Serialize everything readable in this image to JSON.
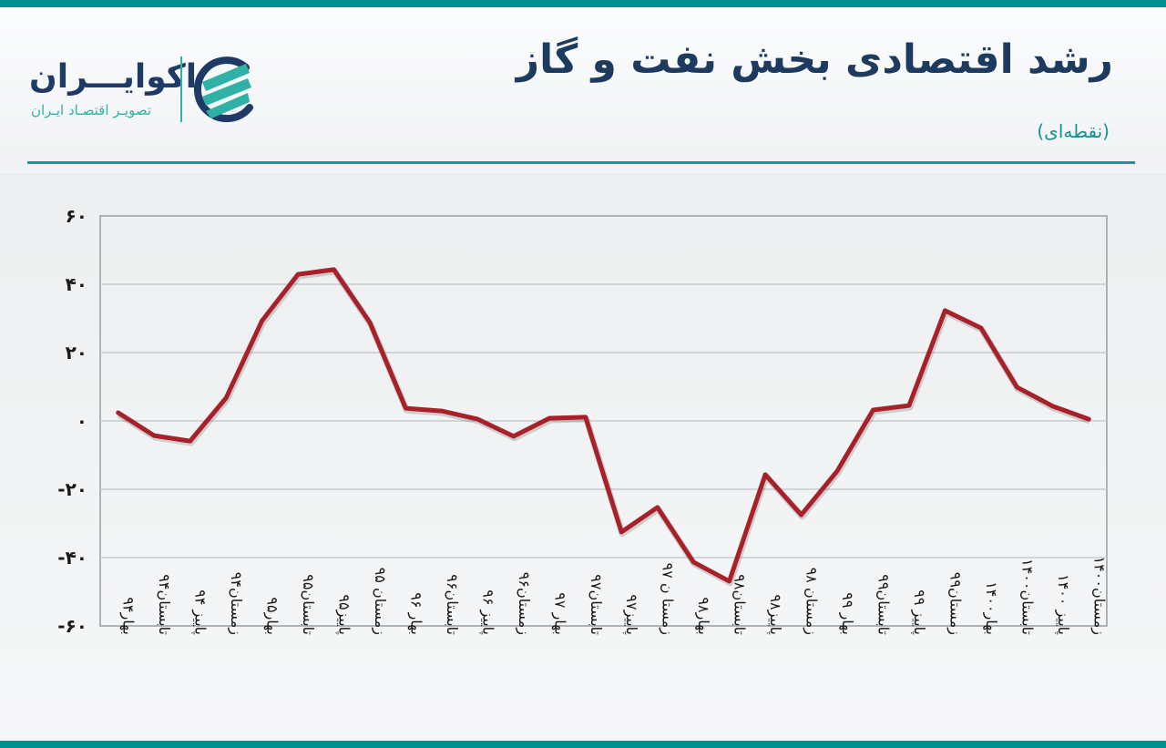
{
  "header": {
    "title": "رشد اقتصادی بخش نفت و گاز",
    "subtitle": "(نقطه‌ای)"
  },
  "logo": {
    "name": "اکوایـــران",
    "tagline": "تصویـر اقتصـاد ایـران",
    "icon": "ecoiran-logo-icon"
  },
  "colors": {
    "accent": "#00918e",
    "title": "#1d3b5e",
    "line": "#a8202a",
    "grid": "#c8cbce"
  },
  "chart_data": {
    "type": "line",
    "title": "رشد اقتصادی بخش نفت و گاز",
    "subtitle": "(نقطه‌ای)",
    "xlabel": "",
    "ylabel": "",
    "ylim": [
      -60,
      60
    ],
    "yticks": [
      60,
      40,
      20,
      0,
      -20,
      -40,
      -60
    ],
    "ytick_labels": [
      "۶۰",
      "۴۰",
      "۲۰",
      "۰",
      "-۲۰",
      "-۴۰",
      "-۶۰"
    ],
    "grid": true,
    "legend": null,
    "categories": [
      "بهار۹۴",
      "تابستان۹۴",
      "پاییز ۹۴",
      "زمستان۹۴",
      "بهار۹۵",
      "تابستان۹۵",
      "پاییز۹۵",
      "زمستان ۹۵",
      "بهار ۹۶",
      "تابستان۹۶",
      "پاییز ۹۶",
      "زمستان۹۶",
      "بهار ۹۷",
      "تابستان۹۷",
      "پاییز۹۷",
      "زمستا ن ۹۷",
      "بهار۹۸",
      "تابستان۹۸",
      "پاییز۹۸",
      "زمستان ۹۸",
      "بهار ۹۹",
      "تابستان۹۹",
      "پاییز ۹۹",
      "زمستان۹۹",
      "بهار۱۴۰۰",
      "تابستان۱۴۰۰",
      "پاییز ۱۴۰۰",
      "زمستان۱۴۰۰"
    ],
    "series": [
      {
        "name": "رشد اقتصادی بخش نفت و گاز",
        "color": "#a8202a",
        "values": [
          2.4,
          -4.3,
          -5.9,
          6.7,
          29.3,
          42.9,
          44.3,
          28.8,
          3.7,
          2.9,
          0.5,
          -4.5,
          0.8,
          1.1,
          -32.5,
          -25.3,
          -41.3,
          -46.9,
          -15.7,
          -27.5,
          -14.7,
          3.2,
          4.5,
          32.3,
          27.2,
          9.9,
          4.3,
          0.5
        ]
      }
    ]
  }
}
